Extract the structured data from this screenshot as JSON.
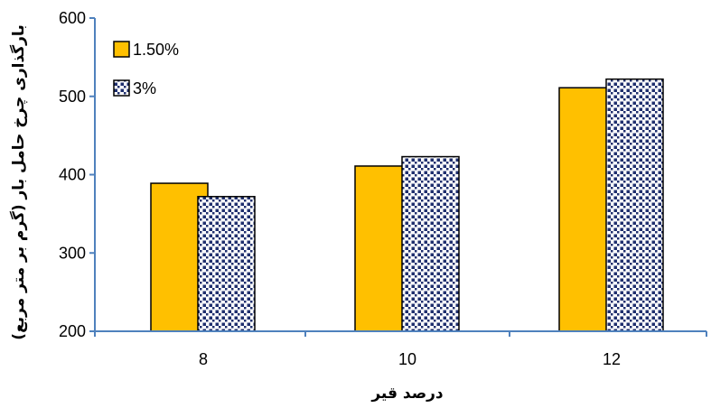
{
  "chart_data": {
    "type": "bar",
    "categories": [
      "8",
      "10",
      "12"
    ],
    "series": [
      {
        "name": "1.50%",
        "values": [
          389,
          411,
          511
        ],
        "color": "#FFC000",
        "pattern": "solid"
      },
      {
        "name": "3%",
        "values": [
          372,
          423,
          522
        ],
        "color": "#1F2F6E",
        "pattern": "dotted"
      }
    ],
    "xlabel": "درصد قیر",
    "ylabel": "بارگذاری چرخ حامل بار (گرم بر متر مربع)",
    "ylim": [
      200,
      600
    ],
    "yticks": [
      "200",
      "300",
      "400",
      "500",
      "600"
    ],
    "legend_position": "top-left",
    "axis_color": "#4F81BD",
    "grid": false
  }
}
